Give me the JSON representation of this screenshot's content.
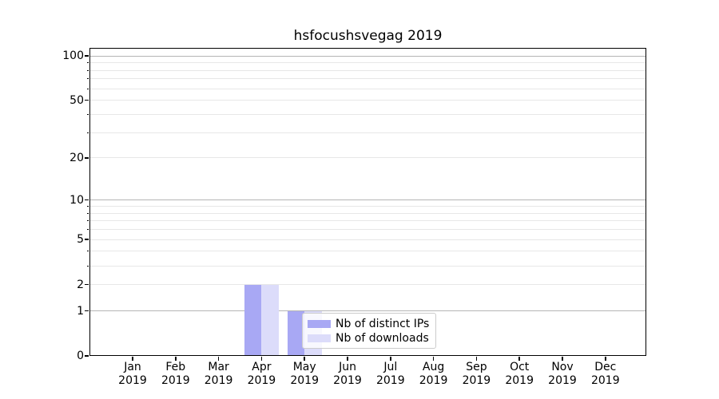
{
  "title": "hsfocushsvegag 2019",
  "chart_data": {
    "type": "bar",
    "title": "hsfocushsvegag 2019",
    "categories": [
      "Jan 2019",
      "Feb 2019",
      "Mar 2019",
      "Apr 2019",
      "May 2019",
      "Jun 2019",
      "Jul 2019",
      "Aug 2019",
      "Sep 2019",
      "Oct 2019",
      "Nov 2019",
      "Dec 2019"
    ],
    "series": [
      {
        "name": "Nb of distinct IPs",
        "color": "#a8a8f4",
        "values": [
          0,
          0,
          0,
          2,
          1,
          0,
          0,
          0,
          0,
          0,
          0,
          0
        ]
      },
      {
        "name": "Nb of downloads",
        "color": "#dcdcfa",
        "values": [
          0,
          0,
          0,
          2,
          1,
          0,
          0,
          0,
          0,
          0,
          0,
          0
        ]
      }
    ],
    "xlabel": "",
    "ylabel": "",
    "yscale": "log1p",
    "ylim": [
      0,
      113
    ],
    "y_major_ticks": [
      0,
      1,
      2,
      5,
      10,
      20,
      50,
      100
    ],
    "y_minor_ticks": [
      3,
      4,
      6,
      7,
      8,
      9,
      30,
      40,
      60,
      70,
      80,
      90
    ],
    "grid": true,
    "legend_position": "inside lower right of plot"
  },
  "legend": {
    "items": [
      "Nb of distinct IPs",
      "Nb of downloads"
    ]
  },
  "colors": {
    "bar_distinct_ips": "#a8a8f4",
    "bar_downloads": "#dcdcfa",
    "grid_decade": "#b5b5b5",
    "grid_minor": "#e7e7e7",
    "axis": "#000000",
    "legend_border": "#cccccc",
    "text": "#000000"
  }
}
